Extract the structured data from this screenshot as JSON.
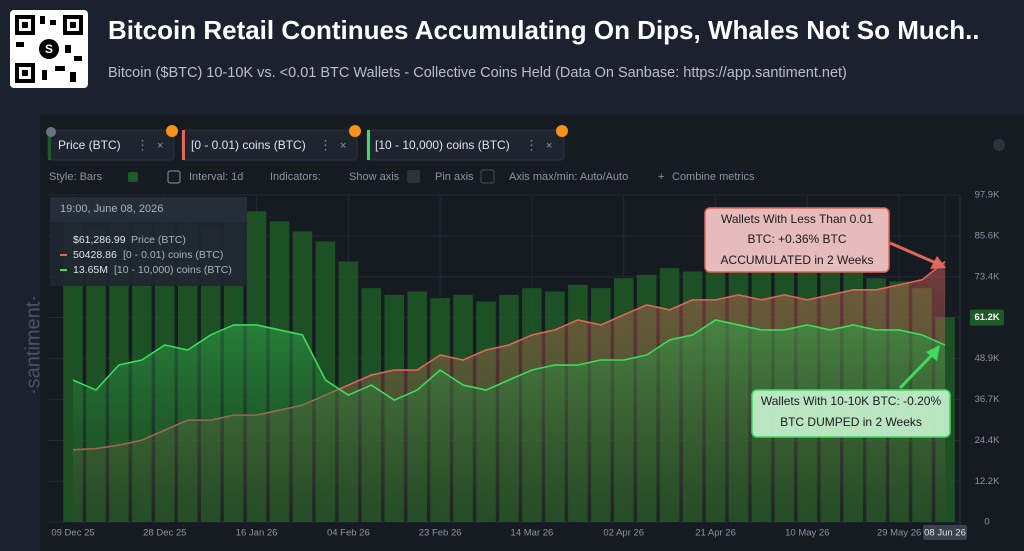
{
  "chart_data": {
    "type": "line",
    "title": "Bitcoin Retail Continues Accumulating On Dips, Whales Not So Much..",
    "subtitle": "Bitcoin ($BTC) 10-10K vs. <0.01 BTC Wallets - Collective Coins Held (Data On Sanbase: https://app.santiment.net)",
    "categories": [
      "09 Dec 25",
      null,
      null,
      null,
      "28 Dec 25",
      null,
      null,
      null,
      "16 Jan 26",
      null,
      null,
      null,
      "04 Feb 26",
      null,
      null,
      null,
      "23 Feb 26",
      null,
      null,
      null,
      "14 Mar 26",
      null,
      null,
      null,
      "02 Apr 26",
      null,
      null,
      null,
      "21 Apr 26",
      null,
      null,
      null,
      "10 May 26",
      null,
      null,
      null,
      "29 May 26",
      null,
      "08 Jun 26"
    ],
    "series": [
      {
        "name": "Price (BTC)",
        "color": "#1e5a26",
        "style": "bars",
        "values": [
          90000,
          88000,
          91000,
          89000,
          92000,
          90000,
          88000,
          91000,
          93000,
          90000,
          87000,
          84000,
          78000,
          70000,
          68000,
          69000,
          67000,
          68000,
          66000,
          68000,
          70000,
          69000,
          71000,
          70000,
          73000,
          74000,
          76000,
          75000,
          77000,
          76000,
          78000,
          77000,
          76000,
          78000,
          75000,
          73000,
          72000,
          70000,
          61287
        ]
      },
      {
        "name": "[0 - 0.01) coins (BTC)",
        "color": "#e0665a",
        "style": "line",
        "values": [
          21600,
          22000,
          23000,
          24500,
          27500,
          30500,
          30500,
          32000,
          32000,
          33500,
          35000,
          38000,
          41000,
          44000,
          45500,
          45500,
          50000,
          48500,
          51500,
          53000,
          56000,
          57500,
          60500,
          59000,
          62000,
          65000,
          63500,
          66500,
          66500,
          68000,
          66500,
          68000,
          66500,
          68000,
          69500,
          69500,
          71000,
          72500,
          78000
        ]
      },
      {
        "name": "[10 - 10,000) coins (BTC)",
        "color": "#3ddc5c",
        "style": "line",
        "values": [
          42500,
          39500,
          47000,
          48500,
          53000,
          51500,
          56000,
          59000,
          59000,
          57500,
          56000,
          42500,
          38000,
          41000,
          36500,
          39500,
          45500,
          41000,
          39500,
          42500,
          45500,
          47000,
          47000,
          48500,
          48500,
          50000,
          54500,
          56000,
          60500,
          59000,
          57500,
          57500,
          59000,
          57500,
          59000,
          57500,
          57500,
          56000,
          53000
        ]
      }
    ],
    "ylim": [
      0,
      97900
    ],
    "yticks": [
      {
        "value": 97900,
        "label": "97.9K"
      },
      {
        "value": 85600,
        "label": "85.6K"
      },
      {
        "value": 73400,
        "label": "73.4K"
      },
      {
        "value": 61200,
        "label": "61.2K"
      },
      {
        "value": 48900,
        "label": "48.9K"
      },
      {
        "value": 36700,
        "label": "36.7K"
      },
      {
        "value": 24400,
        "label": "24.4K"
      },
      {
        "value": 12200,
        "label": "12.2K"
      },
      0
    ],
    "grid": true,
    "tooltip": {
      "time": "19:00, June 08, 2026",
      "values": [
        "$61,286.99",
        "50428.86",
        "13.65M"
      ]
    },
    "annotations": [
      {
        "lines": [
          "Wallets With Less Than 0.01",
          "BTC: +0.36% BTC",
          "ACCUMULATED in 2 Weeks"
        ],
        "color": "#e0665a"
      },
      {
        "lines": [
          "Wallets With 10-10K BTC: -0.20%",
          "BTC DUMPED in 2 Weeks"
        ],
        "color": "#3ddc5c"
      }
    ]
  },
  "toolbar": [
    "Style: Bars",
    "Interval: 1d",
    "Indicators:",
    "Show axis",
    "Pin axis",
    "Axis max/min: Auto/Auto",
    "Combine metrics"
  ],
  "watermark": "·santiment·"
}
